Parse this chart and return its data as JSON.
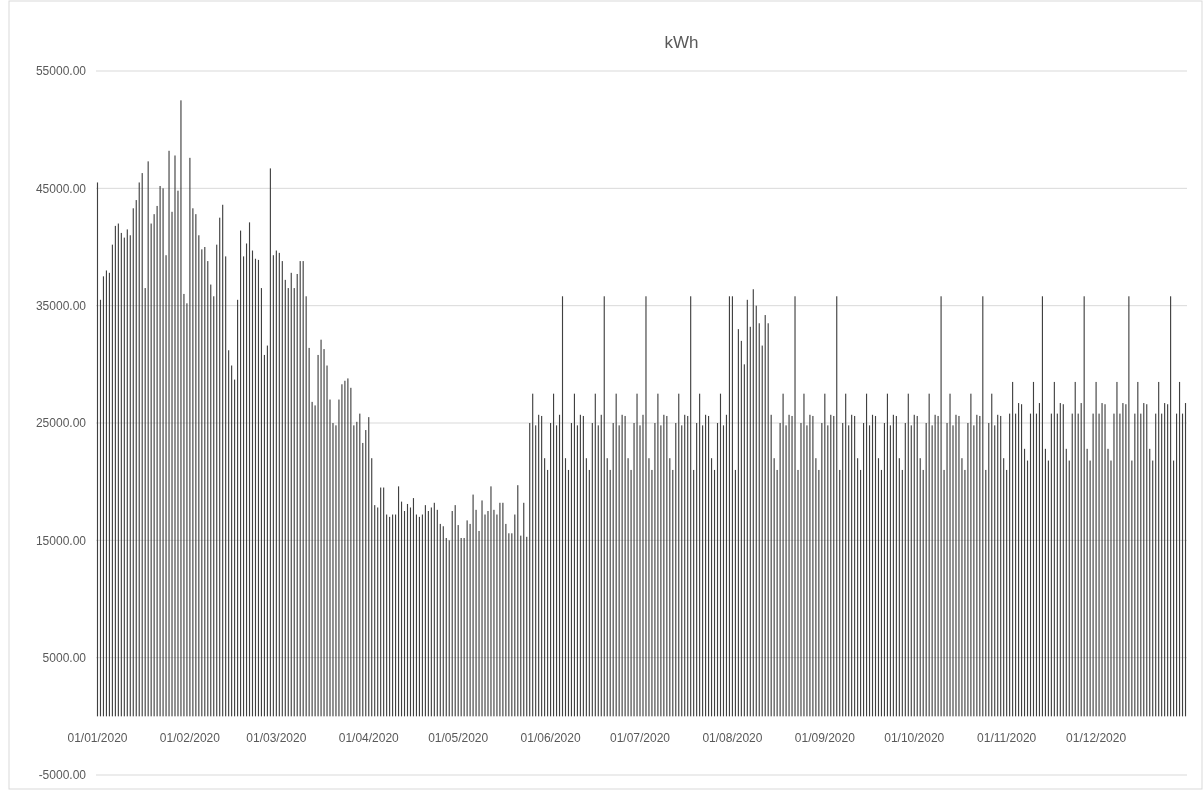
{
  "chart_data": {
    "type": "bar",
    "title": "kWh",
    "color": "#404040",
    "grid": "y",
    "ylim": [
      -5000,
      55000
    ],
    "yticks": [
      {
        "value": -5000,
        "label": "-5000.00"
      },
      {
        "value": 5000,
        "label": "5000.00"
      },
      {
        "value": 15000,
        "label": "15000.00"
      },
      {
        "value": 25000,
        "label": "25000.00"
      },
      {
        "value": 35000,
        "label": "35000.00"
      },
      {
        "value": 45000,
        "label": "45000.00"
      },
      {
        "value": 55000,
        "label": "55000.00"
      }
    ],
    "xlim": [
      "2019-12-31T12:00",
      "2020-12-31T12:00"
    ],
    "xticks": [
      {
        "value": "2020-01-01",
        "label": "01/01/2020"
      },
      {
        "value": "2020-02-01",
        "label": "01/02/2020"
      },
      {
        "value": "2020-03-01",
        "label": "01/03/2020"
      },
      {
        "value": "2020-04-01",
        "label": "01/04/2020"
      },
      {
        "value": "2020-05-01",
        "label": "01/05/2020"
      },
      {
        "value": "2020-06-01",
        "label": "01/06/2020"
      },
      {
        "value": "2020-07-01",
        "label": "01/07/2020"
      },
      {
        "value": "2020-08-01",
        "label": "01/08/2020"
      },
      {
        "value": "2020-09-01",
        "label": "01/09/2020"
      },
      {
        "value": "2020-10-01",
        "label": "01/10/2020"
      },
      {
        "value": "2020-11-01",
        "label": "01/11/2020"
      },
      {
        "value": "2020-12-01",
        "label": "01/12/2020"
      }
    ],
    "x": [
      "2020-01-01",
      "2020-01-02",
      "2020-01-03",
      "2020-01-04",
      "2020-01-05",
      "2020-01-06",
      "2020-01-07",
      "2020-01-08",
      "2020-01-09",
      "2020-01-10",
      "2020-01-11",
      "2020-01-12",
      "2020-01-13",
      "2020-01-14",
      "2020-01-15",
      "2020-01-16",
      "2020-01-17",
      "2020-01-18",
      "2020-01-19",
      "2020-01-20",
      "2020-01-21",
      "2020-01-22",
      "2020-01-23",
      "2020-01-24",
      "2020-01-25",
      "2020-01-26",
      "2020-01-27",
      "2020-01-28",
      "2020-01-29",
      "2020-01-30",
      "2020-01-31",
      "2020-02-01",
      "2020-02-02",
      "2020-02-03",
      "2020-02-04",
      "2020-02-05",
      "2020-02-06",
      "2020-02-07",
      "2020-02-08",
      "2020-02-09",
      "2020-02-10",
      "2020-02-11",
      "2020-02-12",
      "2020-02-13",
      "2020-02-14",
      "2020-02-15",
      "2020-02-16",
      "2020-02-17",
      "2020-02-18",
      "2020-02-19",
      "2020-02-20",
      "2020-02-21",
      "2020-02-22",
      "2020-02-23",
      "2020-02-24",
      "2020-02-25",
      "2020-02-26",
      "2020-02-27",
      "2020-02-28",
      "2020-02-29",
      "2020-03-01",
      "2020-03-02",
      "2020-03-03",
      "2020-03-04",
      "2020-03-05",
      "2020-03-06",
      "2020-03-07",
      "2020-03-08",
      "2020-03-09",
      "2020-03-10",
      "2020-03-11",
      "2020-03-12",
      "2020-03-13",
      "2020-03-14",
      "2020-03-15",
      "2020-03-16",
      "2020-03-17",
      "2020-03-18",
      "2020-03-19",
      "2020-03-20",
      "2020-03-21",
      "2020-03-22",
      "2020-03-23",
      "2020-03-24",
      "2020-03-25",
      "2020-03-26",
      "2020-03-27",
      "2020-03-28",
      "2020-03-29",
      "2020-03-30",
      "2020-03-31",
      "2020-04-01",
      "2020-04-02",
      "2020-04-03",
      "2020-04-04",
      "2020-04-05",
      "2020-04-06",
      "2020-04-07",
      "2020-04-08",
      "2020-04-09",
      "2020-04-10",
      "2020-04-11",
      "2020-04-12",
      "2020-04-13",
      "2020-04-14",
      "2020-04-15",
      "2020-04-16",
      "2020-04-17",
      "2020-04-18",
      "2020-04-19",
      "2020-04-20",
      "2020-04-21",
      "2020-04-22",
      "2020-04-23",
      "2020-04-24",
      "2020-04-25",
      "2020-04-26",
      "2020-04-27",
      "2020-04-28",
      "2020-04-29",
      "2020-04-30",
      "2020-05-01",
      "2020-05-02",
      "2020-05-03",
      "2020-05-04",
      "2020-05-05",
      "2020-05-06",
      "2020-05-07",
      "2020-05-08",
      "2020-05-09",
      "2020-05-10",
      "2020-05-11",
      "2020-05-12",
      "2020-05-13",
      "2020-05-14",
      "2020-05-15",
      "2020-05-16",
      "2020-05-17",
      "2020-05-18",
      "2020-05-19",
      "2020-05-20",
      "2020-05-21",
      "2020-05-22",
      "2020-05-23",
      "2020-05-24",
      "2020-05-25",
      "2020-05-26",
      "2020-05-27",
      "2020-05-28",
      "2020-05-29",
      "2020-05-30",
      "2020-05-31",
      "2020-06-01",
      "2020-06-02",
      "2020-06-03",
      "2020-06-04",
      "2020-06-05",
      "2020-06-06",
      "2020-06-07",
      "2020-06-08",
      "2020-06-09",
      "2020-06-10",
      "2020-06-11",
      "2020-06-12",
      "2020-06-13",
      "2020-06-14",
      "2020-06-15",
      "2020-06-16",
      "2020-06-17",
      "2020-06-18",
      "2020-06-19",
      "2020-06-20",
      "2020-06-21",
      "2020-06-22",
      "2020-06-23",
      "2020-06-24",
      "2020-06-25",
      "2020-06-26",
      "2020-06-27",
      "2020-06-28",
      "2020-06-29",
      "2020-06-30",
      "2020-07-01",
      "2020-07-02",
      "2020-07-03",
      "2020-07-04",
      "2020-07-05",
      "2020-07-06",
      "2020-07-07",
      "2020-07-08",
      "2020-07-09",
      "2020-07-10",
      "2020-07-11",
      "2020-07-12",
      "2020-07-13",
      "2020-07-14",
      "2020-07-15",
      "2020-07-16",
      "2020-07-17",
      "2020-07-18",
      "2020-07-19",
      "2020-07-20",
      "2020-07-21",
      "2020-07-22",
      "2020-07-23",
      "2020-07-24",
      "2020-07-25",
      "2020-07-26",
      "2020-07-27",
      "2020-07-28",
      "2020-07-29",
      "2020-07-30",
      "2020-07-31",
      "2020-08-01",
      "2020-08-02",
      "2020-08-03",
      "2020-08-04",
      "2020-08-05",
      "2020-08-06",
      "2020-08-07",
      "2020-08-08",
      "2020-08-09",
      "2020-08-10",
      "2020-08-11",
      "2020-08-12",
      "2020-08-13",
      "2020-08-14",
      "2020-08-15",
      "2020-08-16",
      "2020-08-17",
      "2020-08-18",
      "2020-08-19",
      "2020-08-20",
      "2020-08-21",
      "2020-08-22",
      "2020-08-23",
      "2020-08-24",
      "2020-08-25",
      "2020-08-26",
      "2020-08-27",
      "2020-08-28",
      "2020-08-29",
      "2020-08-30",
      "2020-08-31",
      "2020-09-01",
      "2020-09-02",
      "2020-09-03",
      "2020-09-04",
      "2020-09-05",
      "2020-09-06",
      "2020-09-07",
      "2020-09-08",
      "2020-09-09",
      "2020-09-10",
      "2020-09-11",
      "2020-09-12",
      "2020-09-13",
      "2020-09-14",
      "2020-09-15",
      "2020-09-16",
      "2020-09-17",
      "2020-09-18",
      "2020-09-19",
      "2020-09-20",
      "2020-09-21",
      "2020-09-22",
      "2020-09-23",
      "2020-09-24",
      "2020-09-25",
      "2020-09-26",
      "2020-09-27",
      "2020-09-28",
      "2020-09-29",
      "2020-09-30",
      "2020-10-01",
      "2020-10-02",
      "2020-10-03",
      "2020-10-04",
      "2020-10-05",
      "2020-10-06",
      "2020-10-07",
      "2020-10-08",
      "2020-10-09",
      "2020-10-10",
      "2020-10-11",
      "2020-10-12",
      "2020-10-13",
      "2020-10-14",
      "2020-10-15",
      "2020-10-16",
      "2020-10-17",
      "2020-10-18",
      "2020-10-19",
      "2020-10-20",
      "2020-10-21",
      "2020-10-22",
      "2020-10-23",
      "2020-10-24",
      "2020-10-25",
      "2020-10-26",
      "2020-10-27",
      "2020-10-28",
      "2020-10-29",
      "2020-10-30",
      "2020-10-31",
      "2020-11-01",
      "2020-11-02",
      "2020-11-03",
      "2020-11-04",
      "2020-11-05",
      "2020-11-06",
      "2020-11-07",
      "2020-11-08",
      "2020-11-09",
      "2020-11-10",
      "2020-11-11",
      "2020-11-12",
      "2020-11-13",
      "2020-11-14",
      "2020-11-15",
      "2020-11-16",
      "2020-11-17",
      "2020-11-18",
      "2020-11-19",
      "2020-11-20",
      "2020-11-21",
      "2020-11-22",
      "2020-11-23",
      "2020-11-24",
      "2020-11-25",
      "2020-11-26",
      "2020-11-27",
      "2020-11-28",
      "2020-11-29",
      "2020-11-30",
      "2020-12-01",
      "2020-12-02",
      "2020-12-03",
      "2020-12-04",
      "2020-12-05",
      "2020-12-06",
      "2020-12-07",
      "2020-12-08",
      "2020-12-09",
      "2020-12-10",
      "2020-12-11",
      "2020-12-12",
      "2020-12-13",
      "2020-12-14",
      "2020-12-15",
      "2020-12-16",
      "2020-12-17",
      "2020-12-18",
      "2020-12-19",
      "2020-12-20",
      "2020-12-21",
      "2020-12-22",
      "2020-12-23",
      "2020-12-24",
      "2020-12-25",
      "2020-12-26",
      "2020-12-27",
      "2020-12-28",
      "2020-12-29",
      "2020-12-30",
      "2020-12-31"
    ],
    "values": [
      45500,
      35500,
      37500,
      38000,
      37800,
      40200,
      41800,
      42000,
      41200,
      40800,
      41500,
      41000,
      43300,
      44000,
      45500,
      46300,
      36500,
      47300,
      42000,
      42800,
      43500,
      45200,
      45000,
      39300,
      48200,
      43000,
      47800,
      44800,
      52500,
      36000,
      35200,
      47600,
      43300,
      42800,
      41000,
      39800,
      40000,
      38800,
      36800,
      35800,
      40200,
      42500,
      43600,
      39200,
      31200,
      29900,
      28700,
      35500,
      41400,
      39200,
      40300,
      42100,
      39700,
      39000,
      38900,
      36500,
      30800,
      31600,
      46700,
      39300,
      39700,
      39500,
      38800,
      37200,
      36500,
      37800,
      36500,
      37700,
      38800,
      38800,
      35800,
      31400,
      26800,
      26500,
      30800,
      32100,
      31300,
      29900,
      27000,
      25000,
      24800,
      27000,
      28300,
      28600,
      28800,
      28000,
      24800,
      25100,
      25800,
      23300,
      24400,
      25500,
      22000,
      18000,
      17800,
      19500,
      19500,
      17200,
      17000,
      17200,
      17200,
      19600,
      18300,
      17500,
      18100,
      17800,
      18600,
      17200,
      17000,
      17200,
      18000,
      17500,
      17800,
      18200,
      17600,
      16400,
      16200,
      15200,
      15000,
      17500,
      18000,
      16300,
      15200,
      15200,
      16700,
      16400,
      18900,
      17600,
      15800,
      18400,
      17200,
      17500,
      19600,
      17600,
      17200,
      18200,
      18200,
      16400,
      15600,
      15600,
      17200,
      19700,
      15400,
      18200,
      15300,
      25000,
      27500,
      24800,
      25700,
      25600,
      22000,
      21000,
      25000,
      27500,
      24800,
      25700,
      35800,
      22000,
      21000,
      25000,
      27500,
      24800,
      25700,
      25600,
      22000,
      21000,
      25000,
      27500,
      24800,
      25700,
      35800,
      22000,
      21000,
      25000,
      27500,
      24800,
      25700,
      25600,
      22000,
      21000,
      25000,
      27500,
      24800,
      25700,
      35800,
      22000,
      21000,
      25000,
      27500,
      24800,
      25700,
      25600,
      22000,
      21000,
      25000,
      27500,
      24800,
      25700,
      25600,
      35800,
      21000,
      25000,
      27500,
      24800,
      25700,
      25600,
      22000,
      21000,
      25000,
      27500,
      24800,
      25700,
      35800,
      35800,
      21000,
      33000,
      32000,
      30000,
      35500,
      33200,
      36400,
      35000,
      33500,
      31600,
      34200,
      33500,
      25700,
      22000,
      21000,
      25000,
      27500,
      24800,
      25700,
      25600,
      35800,
      21000,
      25000,
      27500,
      24800,
      25700,
      25600,
      22000,
      21000,
      25000,
      27500,
      24800,
      25700,
      25600,
      35800,
      21000,
      25000,
      27500,
      24800,
      25700,
      25600,
      22000,
      21000,
      25000,
      27500,
      24800,
      25700,
      25600,
      22000,
      21000,
      25000,
      27500,
      24800,
      25700,
      25600,
      22000,
      21000,
      25000,
      27500,
      24800,
      25700,
      25600,
      22000,
      21000,
      25000,
      27500,
      24800,
      25700,
      25600,
      35800,
      21000,
      25000,
      27500,
      24800,
      25700,
      25600,
      22000,
      21000,
      25000,
      27500,
      24800,
      25700,
      25600,
      35800,
      21000,
      25000,
      27500,
      24800,
      25700,
      25600,
      22000,
      21000,
      25800,
      28500,
      25800,
      26700,
      26600,
      22800,
      21800,
      25800,
      28500,
      25800,
      26700,
      35800,
      22800,
      21800,
      25800,
      28500,
      25800,
      26700,
      26600,
      22800,
      21800,
      25800,
      28500,
      25800,
      26700,
      35800,
      22800,
      21800,
      25800,
      28500,
      25800,
      26700,
      26600,
      22800,
      21800,
      25800,
      28500,
      25800,
      26700,
      26600,
      35800,
      21800,
      25800,
      28500,
      25800,
      26700,
      26600,
      22800,
      21800,
      25800,
      28500,
      25800,
      26700,
      26600,
      35800,
      21800,
      25800,
      28500,
      25800,
      26700
    ]
  }
}
